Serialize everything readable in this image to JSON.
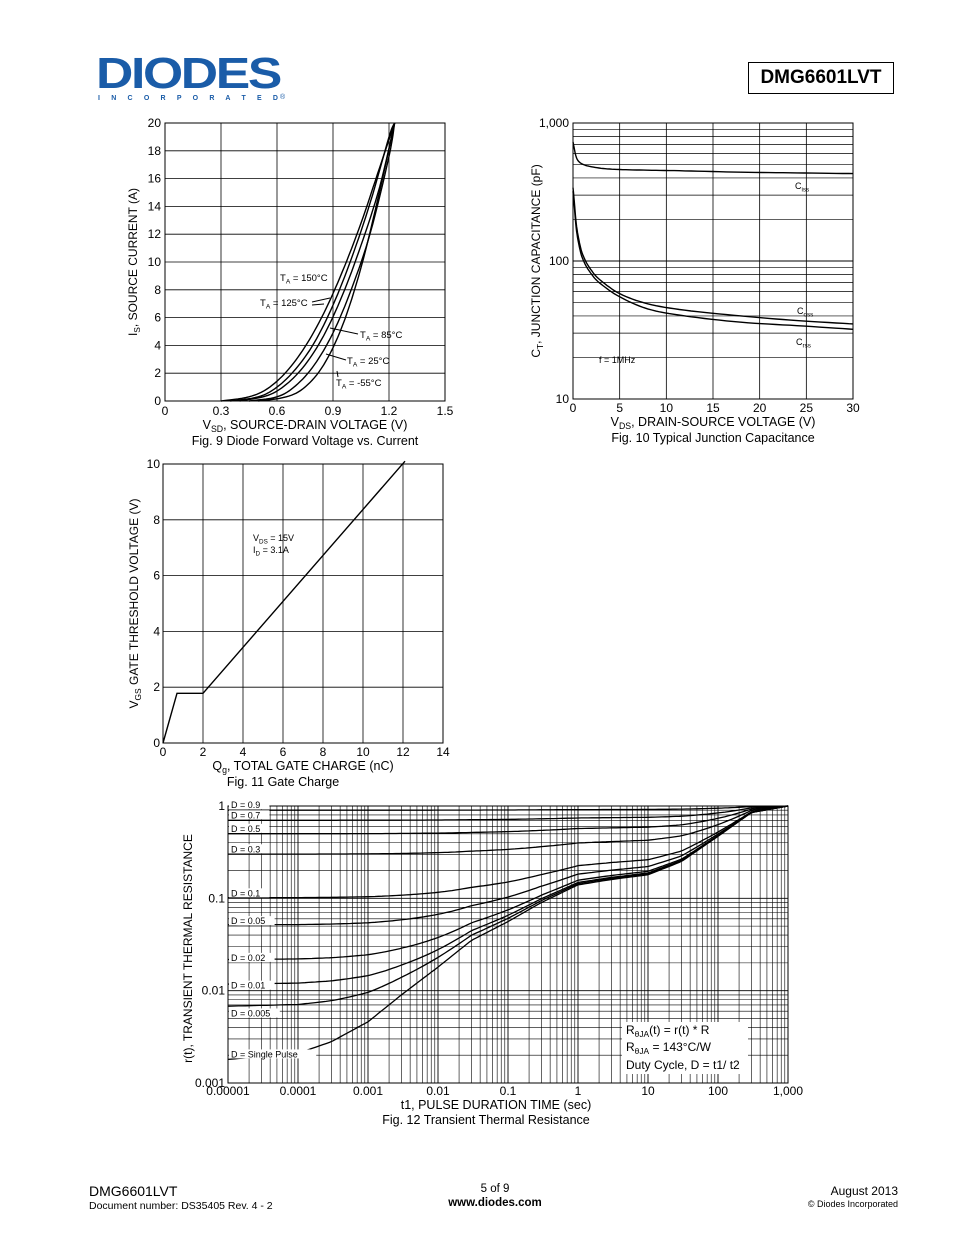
{
  "header": {
    "logo_text": "DIODES",
    "logo_subtext": "I N C O R P O R A T E D",
    "part_number": "DMG6601LVT"
  },
  "colors": {
    "logo_blue": "#1a5ca8",
    "ink": "#000000"
  },
  "footer": {
    "part_number": "DMG6601LVT",
    "document_number": "Document number: DS35405 Rev. 4 - 2",
    "page": "5 of 9",
    "website": "www.diodes.com",
    "date": "August 2013",
    "copyright": "© Diodes Incorporated"
  },
  "chart_data": [
    {
      "type": "line",
      "caption": "Fig. 9 Diode Forward Voltage vs. Current",
      "xlabel_main": "V",
      "xlabel_sub": "SD",
      "xlabel_rest": ", SOURCE-DRAIN VOLTAGE (V)",
      "ylabel_main": "I",
      "ylabel_sub": "S",
      "ylabel_rest": ", SOURCE CURRENT (A)",
      "xlim": [
        0,
        1.5
      ],
      "ylim": [
        0,
        20
      ],
      "x_ticks": [
        "0",
        "0.3",
        "0.6",
        "0.9",
        "1.2",
        "1.5"
      ],
      "y_ticks": [
        "0",
        "2",
        "4",
        "6",
        "8",
        "10",
        "12",
        "14",
        "16",
        "18",
        "20"
      ],
      "annotations": [
        "T = 150°C",
        "T = 125°C",
        "T = 85°C",
        "T = 25°C",
        "T = -55°C"
      ],
      "series": [
        {
          "name": "T = 150°C",
          "x": [
            0.3,
            0.45,
            0.55,
            0.65,
            0.75,
            0.85,
            0.95,
            1.05,
            1.15,
            1.23
          ],
          "y": [
            0,
            0.3,
            0.9,
            2.1,
            3.9,
            6.3,
            9.3,
            12.8,
            16.8,
            20
          ]
        },
        {
          "name": "T = 125°C",
          "x": [
            0.35,
            0.5,
            0.6,
            0.7,
            0.8,
            0.9,
            1.0,
            1.1,
            1.2,
            1.23
          ],
          "y": [
            0,
            0.3,
            1.0,
            2.3,
            4.2,
            6.9,
            10.3,
            14.3,
            19,
            20
          ]
        },
        {
          "name": "T = 85°C",
          "x": [
            0.4,
            0.55,
            0.65,
            0.75,
            0.85,
            0.95,
            1.05,
            1.15,
            1.23
          ],
          "y": [
            0,
            0.4,
            1.2,
            2.6,
            4.7,
            7.6,
            11.2,
            15.4,
            20
          ]
        },
        {
          "name": "T = 25°C",
          "x": [
            0.45,
            0.6,
            0.7,
            0.8,
            0.9,
            1.0,
            1.1,
            1.2,
            1.23
          ],
          "y": [
            0,
            0.3,
            1.1,
            2.6,
            4.9,
            8.1,
            12.1,
            17.6,
            20
          ]
        },
        {
          "name": "T = -55°C",
          "x": [
            0.5,
            0.65,
            0.75,
            0.85,
            0.95,
            1.05,
            1.15,
            1.23
          ],
          "y": [
            0,
            0.3,
            1.0,
            2.6,
            5.4,
            9.6,
            15.1,
            20
          ]
        }
      ]
    },
    {
      "type": "line",
      "caption": "Fig. 10 Typical Junction Capacitance",
      "xlabel_main": "V",
      "xlabel_sub": "DS",
      "xlabel_rest": ", DRAIN-SOURCE VOLTAGE (V)",
      "ylabel_main": "C",
      "ylabel_sub": "T",
      "ylabel_rest": ", JUNCTION CAPACITANCE (pF)",
      "xlim": [
        0,
        30
      ],
      "ylim": [
        10,
        1000
      ],
      "y_scale": "log",
      "x_ticks": [
        "0",
        "5",
        "10",
        "15",
        "20",
        "25",
        "30"
      ],
      "y_ticks": [
        "10",
        "100",
        "1,000"
      ],
      "annotation": "f = 1MHz",
      "series": [
        {
          "name": "C",
          "sub": "iss",
          "x": [
            0,
            0.3,
            0.7,
            1.5,
            3,
            5,
            8,
            12,
            18,
            24,
            30
          ],
          "y": [
            730,
            580,
            520,
            490,
            470,
            460,
            455,
            450,
            440,
            435,
            430
          ]
        },
        {
          "name": "C",
          "sub": "oss",
          "x": [
            0,
            0.3,
            0.7,
            1.2,
            2,
            3,
            5,
            8,
            12,
            18,
            24,
            30
          ],
          "y": [
            340,
            200,
            135,
            105,
            85,
            72,
            58,
            49,
            44,
            40,
            37,
            35
          ]
        },
        {
          "name": "C",
          "sub": "rss",
          "x": [
            0,
            0.3,
            0.7,
            1.2,
            2,
            3,
            5,
            8,
            12,
            18,
            24,
            30
          ],
          "y": [
            320,
            185,
            125,
            98,
            80,
            68,
            55,
            45,
            40,
            36,
            34,
            32
          ]
        }
      ]
    },
    {
      "type": "line",
      "caption": "Fig. 11 Gate Charge",
      "xlabel_main": "Q",
      "xlabel_sub": "g",
      "xlabel_rest": ", TOTAL GATE CHARGE (nC)",
      "ylabel_main": "V",
      "ylabel_sub": "GS",
      "ylabel_rest": " GATE THRESHOLD VOLTAGE (V)",
      "xlim": [
        0,
        14
      ],
      "ylim": [
        0,
        10
      ],
      "x_ticks": [
        "0",
        "2",
        "4",
        "6",
        "8",
        "10",
        "12",
        "14"
      ],
      "y_ticks": [
        "0",
        "2",
        "4",
        "6",
        "8",
        "10"
      ],
      "annotations": [
        "V = 15V",
        "I = 3.1A"
      ],
      "series": [
        {
          "name": "",
          "x": [
            0,
            0.7,
            2.0,
            12.1
          ],
          "y": [
            0,
            1.78,
            1.78,
            10.1
          ]
        }
      ]
    },
    {
      "type": "line",
      "caption": "Fig. 12 Transient Thermal Resistance",
      "xlabel": "t1, PULSE DURATION TIME (sec)",
      "ylabel": "r(t), TRANSIENT THERMAL RESISTANCE",
      "x_scale": "log",
      "y_scale": "log",
      "xlim": [
        1e-05,
        1000
      ],
      "ylim": [
        0.001,
        1
      ],
      "x_ticks": [
        "0.00001",
        "0.0001",
        "0.001",
        "0.01",
        "0.1",
        "1",
        "10",
        "100",
        "1,000"
      ],
      "y_ticks": [
        "0.001",
        "0.01",
        "0.1",
        "1"
      ],
      "legend_lines": [
        "R  (t) = r(t) * R",
        "R    = 143°C/W",
        "Duty Cycle, D = t1/ t2"
      ],
      "series_labels": [
        "D = 0.9",
        "D = 0.7",
        "D = 0.5",
        "D = 0.3",
        "D = 0.1",
        "D = 0.05",
        "D = 0.02",
        "D = 0.01",
        "D = 0.005",
        "D = Single Pulse"
      ],
      "single_pulse": {
        "x": [
          1e-05,
          0.0001,
          0.0003,
          0.001,
          0.003,
          0.01,
          0.03,
          0.1,
          0.3,
          1,
          3,
          10,
          30,
          100,
          300,
          1000
        ],
        "y": [
          0.0018,
          0.0021,
          0.0028,
          0.0046,
          0.009,
          0.018,
          0.035,
          0.056,
          0.09,
          0.14,
          0.16,
          0.18,
          0.25,
          0.47,
          0.85,
          1.0
        ]
      }
    }
  ]
}
